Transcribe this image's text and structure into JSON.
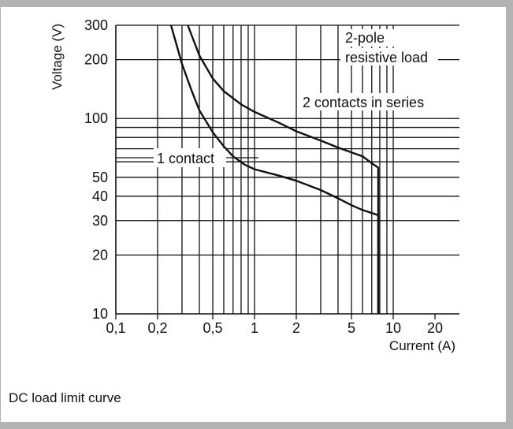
{
  "chart_data": {
    "type": "line",
    "xlabel": "Current (A)",
    "ylabel": "Voltage (V)",
    "x_scale": "log",
    "y_scale": "log",
    "xlim": [
      0.1,
      30
    ],
    "ylim": [
      10,
      300
    ],
    "x_ticks": [
      0.1,
      0.2,
      0.5,
      1,
      2,
      5,
      10,
      20
    ],
    "x_tick_labels": [
      "0,1",
      "0,2",
      "0,5",
      "1",
      "2",
      "5",
      "10",
      "20"
    ],
    "y_ticks": [
      10,
      20,
      30,
      40,
      50,
      100,
      200,
      300
    ],
    "y_tick_labels": [
      "10",
      "20",
      "30",
      "40",
      "50",
      "100",
      "200",
      "300"
    ],
    "x_grid": [
      0.2,
      0.3,
      0.4,
      0.5,
      0.6,
      0.7,
      0.8,
      0.9,
      1,
      2,
      3,
      4,
      5,
      6,
      7,
      8,
      9,
      10
    ],
    "y_grid": [
      20,
      30,
      40,
      50,
      60,
      70,
      80,
      90,
      100,
      200,
      300
    ],
    "series": [
      {
        "name": "1 contact",
        "points": [
          [
            0.25,
            300
          ],
          [
            0.3,
            190
          ],
          [
            0.35,
            140
          ],
          [
            0.4,
            110
          ],
          [
            0.5,
            85
          ],
          [
            0.6,
            72
          ],
          [
            0.7,
            64
          ],
          [
            0.85,
            58
          ],
          [
            1,
            55
          ],
          [
            1.5,
            51
          ],
          [
            2,
            48
          ],
          [
            3,
            43
          ],
          [
            4,
            39
          ],
          [
            5,
            36
          ],
          [
            6,
            34
          ],
          [
            7.8,
            32
          ],
          [
            7.8,
            10
          ]
        ]
      },
      {
        "name": "2 contacts in series",
        "points": [
          [
            0.33,
            300
          ],
          [
            0.4,
            210
          ],
          [
            0.5,
            160
          ],
          [
            0.6,
            138
          ],
          [
            0.8,
            118
          ],
          [
            1,
            108
          ],
          [
            1.5,
            95
          ],
          [
            2,
            86
          ],
          [
            3,
            77
          ],
          [
            4,
            71
          ],
          [
            5,
            67
          ],
          [
            6,
            64
          ],
          [
            7,
            59
          ],
          [
            7.8,
            56
          ],
          [
            7.8,
            10
          ]
        ]
      }
    ],
    "annotations": [
      {
        "text": "1 contact"
      },
      {
        "text": "2 contacts in series"
      },
      {
        "text": "2-pole"
      },
      {
        "text": "resistive load"
      }
    ]
  },
  "caption": "DC load limit curve"
}
